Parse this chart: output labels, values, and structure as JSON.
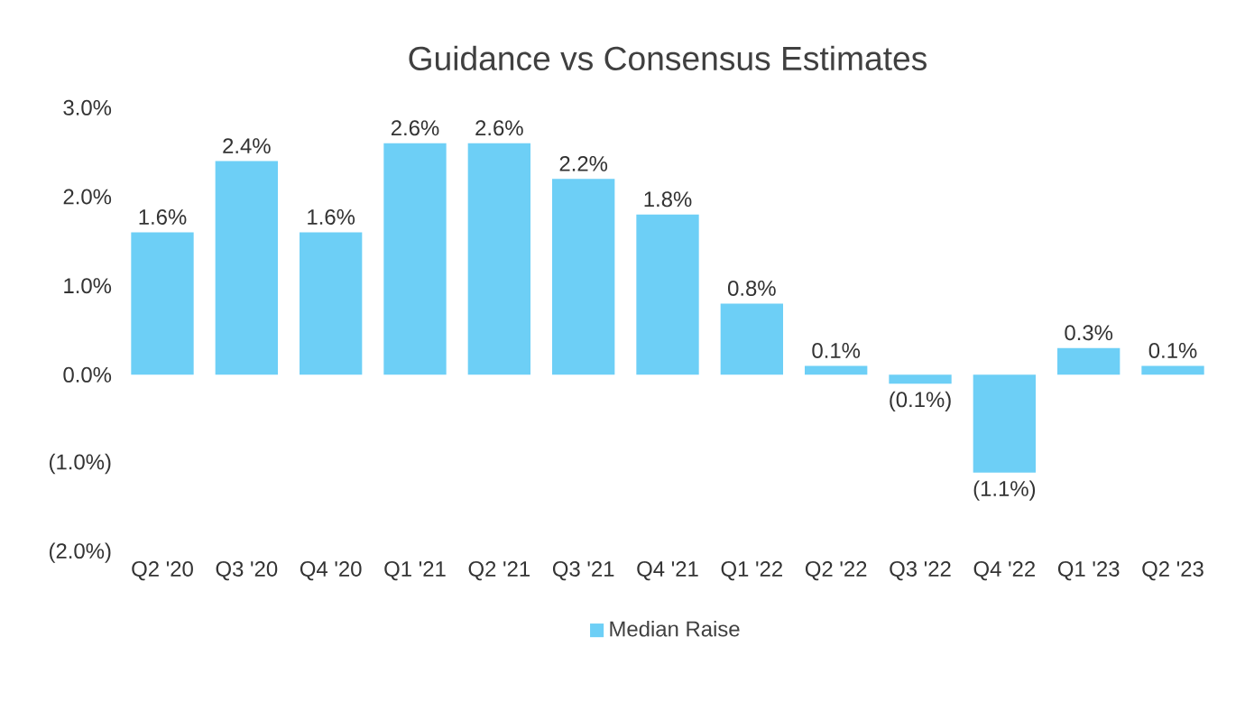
{
  "chart_data": {
    "type": "bar",
    "title": "Guidance vs Consensus Estimates",
    "categories": [
      "Q2 '20",
      "Q3 '20",
      "Q4 '20",
      "Q1 '21",
      "Q2 '21",
      "Q3 '21",
      "Q4 '21",
      "Q1 '22",
      "Q2 '22",
      "Q3 '22",
      "Q4 '22",
      "Q1 '23",
      "Q2 '23"
    ],
    "series": [
      {
        "name": "Median Raise",
        "color": "#6dcff6",
        "values": [
          1.6,
          2.4,
          1.6,
          2.6,
          2.6,
          2.2,
          1.8,
          0.8,
          0.1,
          -0.1,
          -1.1,
          0.3,
          0.1
        ],
        "value_labels": [
          "1.6%",
          "2.4%",
          "1.6%",
          "2.6%",
          "2.6%",
          "2.2%",
          "1.8%",
          "0.8%",
          "0.1%",
          "(0.1%)",
          "(1.1%)",
          "0.3%",
          "0.1%"
        ]
      }
    ],
    "ylim": [
      -2,
      3
    ],
    "yticks": [
      {
        "value": -2,
        "label": "(2.0%)"
      },
      {
        "value": -1,
        "label": "(1.0%)"
      },
      {
        "value": 0,
        "label": "0.0%"
      },
      {
        "value": 1,
        "label": "1.0%"
      },
      {
        "value": 2,
        "label": "2.0%"
      },
      {
        "value": 3,
        "label": "3.0%"
      }
    ],
    "legend": "bottom"
  }
}
